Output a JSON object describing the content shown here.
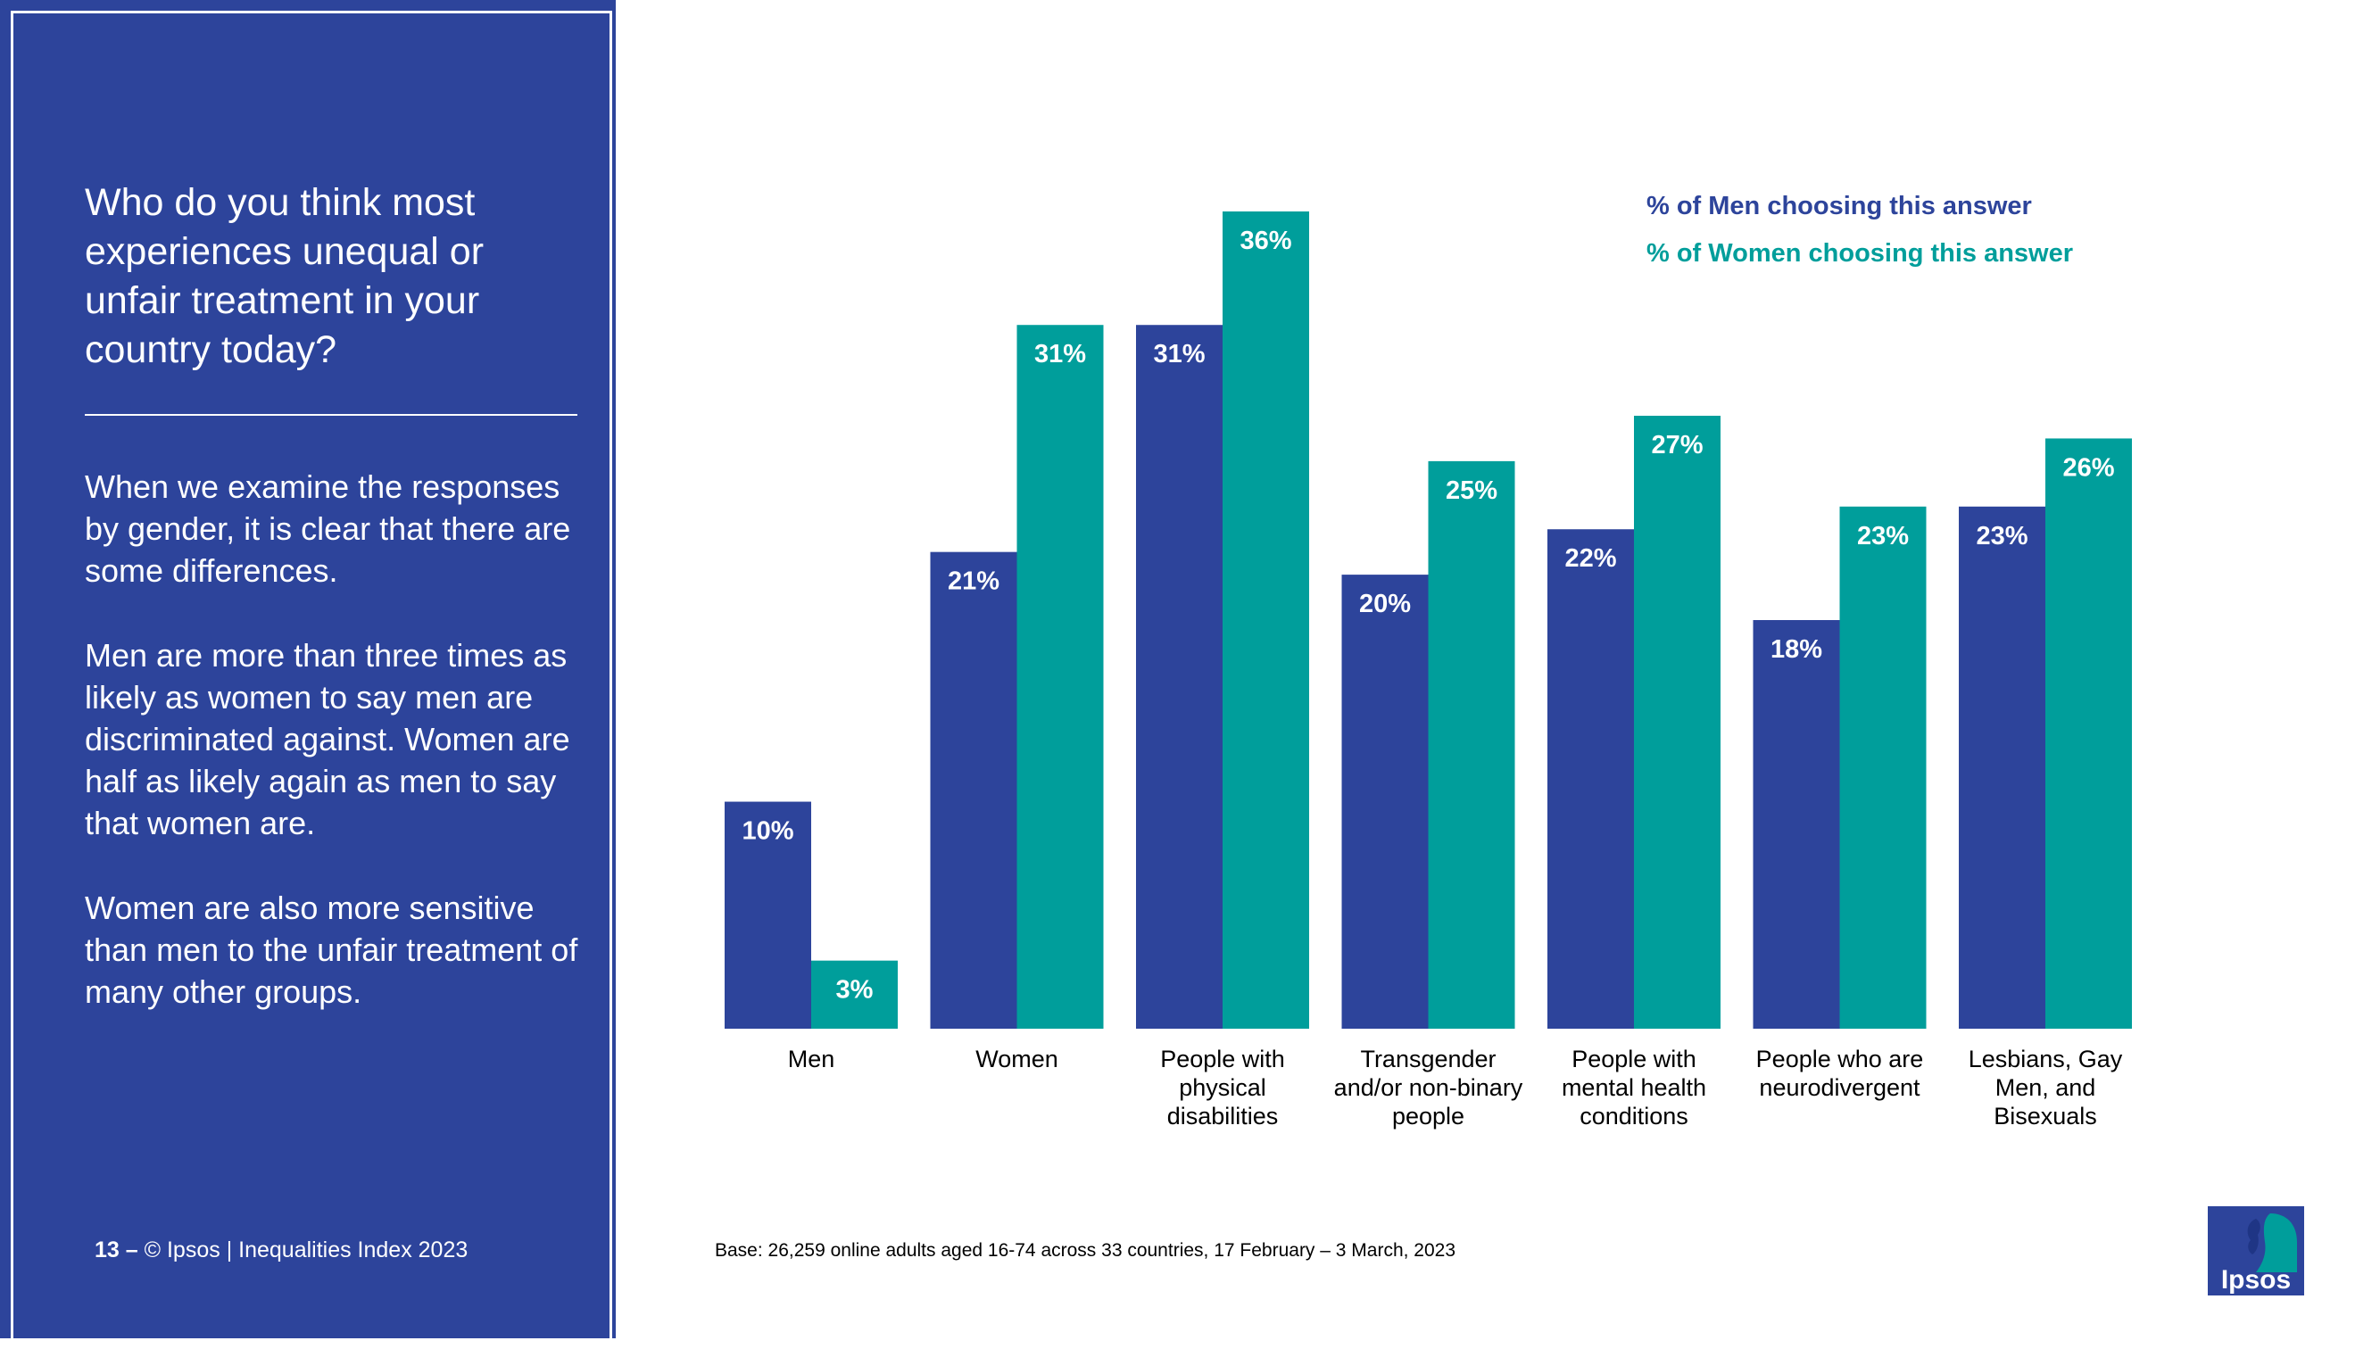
{
  "colors": {
    "panel": "#2d449b",
    "men": "#2d449b",
    "women": "#009e9b",
    "text": "#000000"
  },
  "left": {
    "question": "Who do you think most experiences unequal or unfair treatment in your country today?",
    "paragraphs": [
      "When we examine the responses by gender, it is clear that there are some differences.",
      "Men are more than three times as likely as women to say men are discriminated against. Women are half as likely again as men to say that women are.",
      "Women are also more sensitive than men to the unfair treatment of many other groups."
    ]
  },
  "footer": {
    "page_number": "13 –",
    "copyright": "© Ipsos | Inequalities Index 2023"
  },
  "base_note": "Base: 26,259 online adults aged 16-74 across 33 countries, 17 February – 3 March, 2023",
  "logo_text": "Ipsos",
  "chart_data": {
    "type": "bar",
    "title": "",
    "xlabel": "",
    "ylabel": "",
    "ylim": [
      0,
      36
    ],
    "grid": false,
    "legend_position": "top-right",
    "categories": [
      "Men",
      "Women",
      "People with physical disabilities",
      "Transgender and/or non-binary people",
      "People with mental health conditions",
      "People who are neurodivergent",
      "Lesbians, Gay Men, and Bisexuals"
    ],
    "category_lines": [
      [
        "Men"
      ],
      [
        "Women"
      ],
      [
        "People with",
        "physical",
        "disabilities"
      ],
      [
        "Transgender",
        "and/or non-binary",
        "people"
      ],
      [
        "People with",
        "mental health",
        "conditions"
      ],
      [
        "People who are",
        "neurodivergent"
      ],
      [
        "Lesbians, Gay",
        "Men, and",
        "Bisexuals"
      ]
    ],
    "series": [
      {
        "name": "% of Men choosing this answer",
        "values": [
          10,
          21,
          31,
          20,
          22,
          18,
          23
        ],
        "labels": [
          "10%",
          "21%",
          "31%",
          "20%",
          "22%",
          "18%",
          "23%"
        ]
      },
      {
        "name": "% of Women choosing this answer",
        "values": [
          3,
          31,
          36,
          25,
          27,
          23,
          26
        ],
        "labels": [
          "3%",
          "31%",
          "36%",
          "25%",
          "27%",
          "23%",
          "26%"
        ]
      }
    ]
  }
}
